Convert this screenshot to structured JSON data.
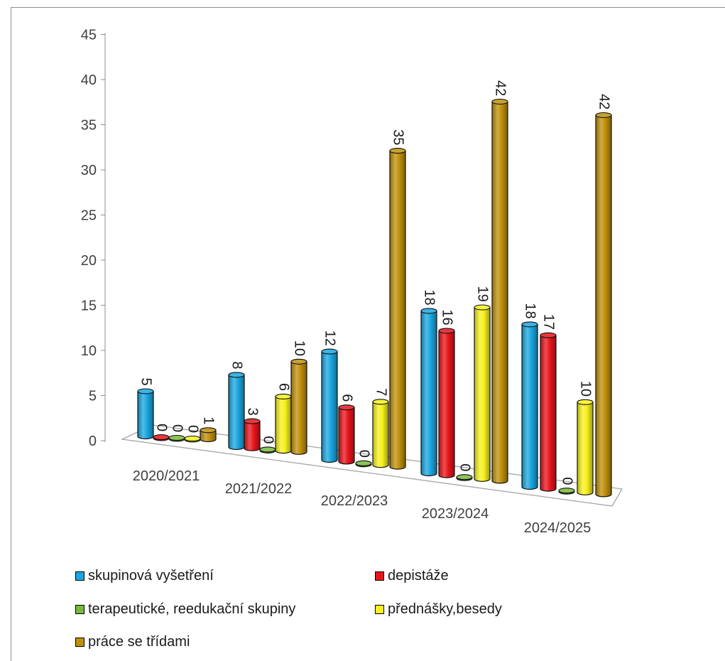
{
  "chart_data": {
    "type": "bar",
    "style": "3d-cylinder",
    "categories": [
      "2020/2021",
      "2021/2022",
      "2022/2023",
      "2023/2024",
      "2024/2025"
    ],
    "series": [
      {
        "name": "skupinová vyšetření",
        "color": "#1aa6e0",
        "values": [
          5,
          8,
          12,
          18,
          18
        ]
      },
      {
        "name": "depistáže",
        "color": "#e8141b",
        "values": [
          0,
          3,
          6,
          16,
          17
        ]
      },
      {
        "name": "terapeutické, reedukační skupiny",
        "color": "#7bb83e",
        "values": [
          0,
          0,
          0,
          0,
          0
        ]
      },
      {
        "name": "přednášky,besedy",
        "color": "#f7f21c",
        "values": [
          0,
          6,
          7,
          19,
          10
        ]
      },
      {
        "name": "práce se třídami",
        "color": "#c0900b",
        "values": [
          1,
          10,
          35,
          42,
          42
        ]
      }
    ],
    "yaxis": {
      "min": 0,
      "max": 45,
      "step": 5,
      "ticks": [
        "0",
        "5",
        "10",
        "15",
        "20",
        "25",
        "30",
        "35",
        "40",
        "45"
      ]
    },
    "legend_position": "bottom",
    "grid": false
  }
}
